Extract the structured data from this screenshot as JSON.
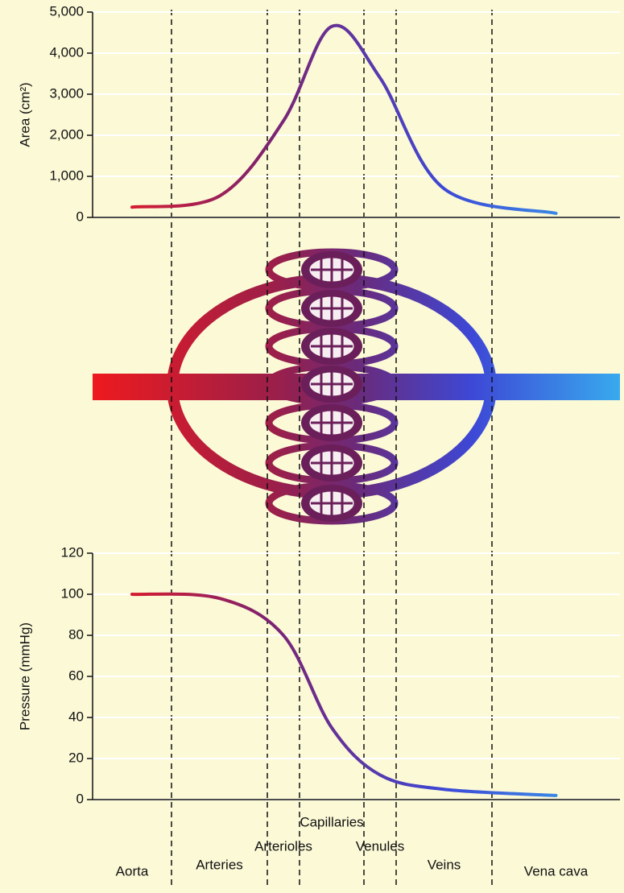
{
  "chart_data": [
    {
      "type": "line",
      "ylabel": "Area (cm²)",
      "values": [
        250,
        520,
        2350,
        4650,
        3400,
        700,
        100
      ],
      "ylim": [
        0,
        5000
      ],
      "yticks": [
        0,
        {
          "value": 1000,
          "label": "1,000"
        },
        {
          "value": 2000,
          "label": "2,000"
        },
        {
          "value": 3000,
          "label": "3,000"
        },
        {
          "value": 4000,
          "label": "4,000"
        },
        {
          "value": 5000,
          "label": "5,000"
        }
      ],
      "colors": [
        "#ee1a1e",
        "#7d2370",
        "#3d48d6",
        "#38aaee"
      ],
      "grid": true
    },
    {
      "type": "line",
      "ylabel": "Pressure (mmHg)",
      "categories": [
        "Aorta",
        "Arteries",
        "Arterioles",
        "Capillaries",
        "Venules",
        "Veins",
        "Vena cava"
      ],
      "values": [
        100,
        98,
        80,
        35,
        12,
        5,
        2
      ],
      "ylim": [
        0,
        120
      ],
      "yticks": [
        0,
        20,
        40,
        60,
        80,
        100,
        120
      ],
      "colors": [
        "#ee1a1e",
        "#7d2370",
        "#3d48d6",
        "#38aaee"
      ],
      "grid": true
    }
  ]
}
